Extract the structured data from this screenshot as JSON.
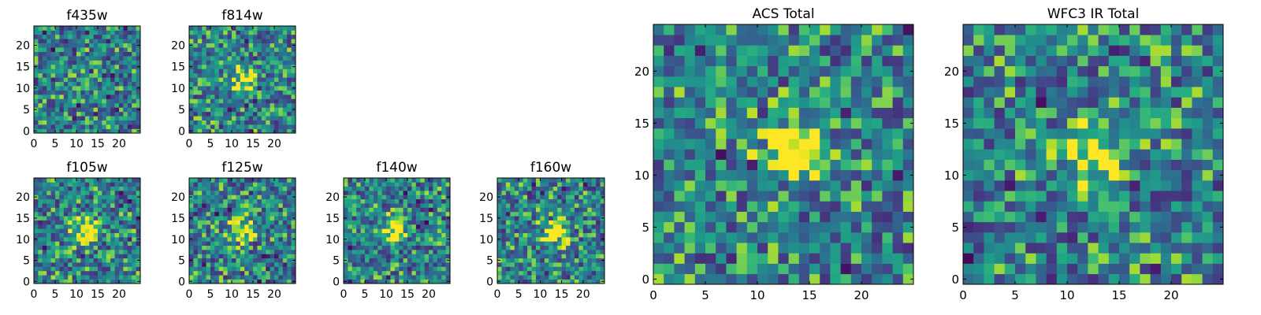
{
  "chart_data": [
    {
      "type": "heatmap",
      "title": "f435w",
      "pixels": 25,
      "xticks": [
        0,
        5,
        10,
        15,
        20
      ],
      "yticks": [
        0,
        5,
        10,
        15,
        20
      ],
      "xlim": [
        0,
        25
      ],
      "ylim": [
        0,
        25
      ],
      "colormap": "viridis",
      "source_position": null
    },
    {
      "type": "heatmap",
      "title": "f814w",
      "pixels": 25,
      "xticks": [
        0,
        5,
        10,
        15,
        20
      ],
      "yticks": [
        0,
        5,
        10,
        15,
        20
      ],
      "xlim": [
        0,
        25
      ],
      "ylim": [
        0,
        25
      ],
      "colormap": "viridis",
      "source_position": [
        12,
        12
      ]
    },
    {
      "type": "heatmap",
      "title": "f105w",
      "pixels": 25,
      "xticks": [
        0,
        5,
        10,
        15,
        20
      ],
      "yticks": [
        0,
        5,
        10,
        15,
        20
      ],
      "xlim": [
        0,
        25
      ],
      "ylim": [
        0,
        25
      ],
      "colormap": "viridis",
      "source_position": [
        12,
        12
      ]
    },
    {
      "type": "heatmap",
      "title": "f125w",
      "pixels": 25,
      "xticks": [
        0,
        5,
        10,
        15,
        20
      ],
      "yticks": [
        0,
        5,
        10,
        15,
        20
      ],
      "xlim": [
        0,
        25
      ],
      "ylim": [
        0,
        25
      ],
      "colormap": "viridis",
      "source_position": [
        12,
        12
      ]
    },
    {
      "type": "heatmap",
      "title": "f140w",
      "pixels": 25,
      "xticks": [
        0,
        5,
        10,
        15,
        20
      ],
      "yticks": [
        0,
        5,
        10,
        15,
        20
      ],
      "xlim": [
        0,
        25
      ],
      "ylim": [
        0,
        25
      ],
      "colormap": "viridis",
      "source_position": [
        11,
        12
      ]
    },
    {
      "type": "heatmap",
      "title": "f160w",
      "pixels": 25,
      "xticks": [
        0,
        5,
        10,
        15,
        20
      ],
      "yticks": [
        0,
        5,
        10,
        15,
        20
      ],
      "xlim": [
        0,
        25
      ],
      "ylim": [
        0,
        25
      ],
      "colormap": "viridis",
      "source_position": [
        13,
        12
      ]
    },
    {
      "type": "heatmap",
      "title": "ACS Total",
      "pixels": 25,
      "xticks": [
        0,
        5,
        10,
        15,
        20
      ],
      "yticks": [
        0,
        5,
        10,
        15,
        20
      ],
      "xlim": [
        0,
        25
      ],
      "ylim": [
        0,
        25
      ],
      "colormap": "viridis",
      "source_position": [
        13,
        12
      ]
    },
    {
      "type": "heatmap",
      "title": "WFC3 IR Total",
      "pixels": 25,
      "xticks": [
        0,
        5,
        10,
        15,
        20
      ],
      "yticks": [
        0,
        5,
        10,
        15,
        20
      ],
      "xlim": [
        0,
        25
      ],
      "ylim": [
        0,
        25
      ],
      "colormap": "viridis",
      "source_position": [
        12,
        12
      ]
    }
  ]
}
